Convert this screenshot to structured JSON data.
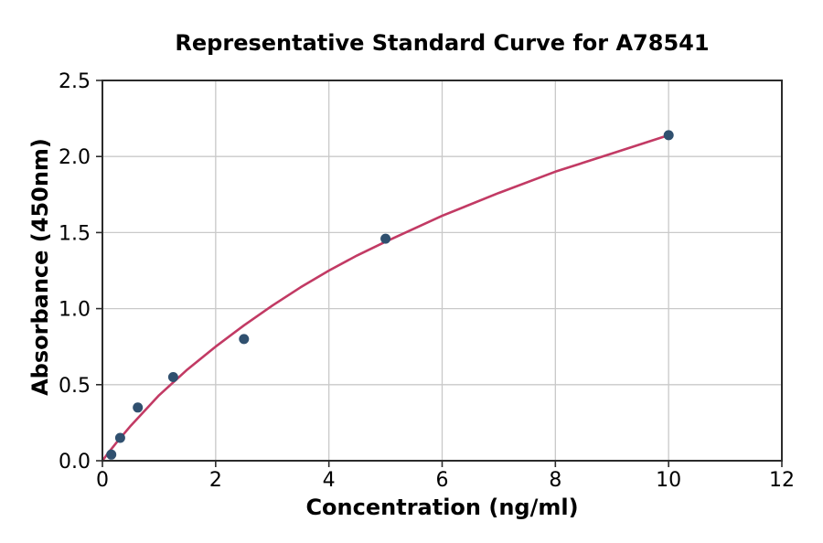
{
  "chart_data": {
    "type": "scatter",
    "title": "Representative Standard Curve for A78541",
    "xlabel": "Concentration (ng/ml)",
    "ylabel": "Absorbance (450nm)",
    "xlim": [
      0,
      12
    ],
    "ylim": [
      0,
      2.5
    ],
    "xticks": [
      0,
      2,
      4,
      6,
      8,
      10,
      12
    ],
    "yticks": [
      0,
      0.5,
      1.0,
      1.5,
      2.0,
      2.5
    ],
    "xtick_labels": [
      "0",
      "2",
      "4",
      "6",
      "8",
      "10",
      "12"
    ],
    "ytick_labels": [
      "0.0",
      "0.5",
      "1.0",
      "1.5",
      "2.0",
      "2.5"
    ],
    "grid": true,
    "legend": "none",
    "series": [
      {
        "name": "standard-points",
        "type": "scatter",
        "color": "#30506f",
        "x": [
          0.156,
          0.313,
          0.625,
          1.25,
          2.5,
          5,
          10
        ],
        "y": [
          0.04,
          0.15,
          0.35,
          0.55,
          0.8,
          1.46,
          2.14
        ]
      },
      {
        "name": "fitted-curve",
        "type": "line",
        "color": "#c23a64",
        "x": [
          0,
          0.1,
          0.25,
          0.5,
          0.75,
          1,
          1.5,
          2,
          2.5,
          3,
          3.5,
          4,
          4.5,
          5,
          6,
          7,
          8,
          9,
          10
        ],
        "y": [
          0,
          0.05,
          0.12,
          0.23,
          0.33,
          0.43,
          0.6,
          0.75,
          0.89,
          1.02,
          1.14,
          1.25,
          1.35,
          1.44,
          1.61,
          1.76,
          1.9,
          2.02,
          2.14
        ]
      }
    ],
    "colors": {
      "point": "#30506f",
      "curve": "#c23a64",
      "grid": "#c9c9c9",
      "spine": "#2b2b2b",
      "tick_text": "#000000",
      "background": "#ffffff"
    }
  }
}
